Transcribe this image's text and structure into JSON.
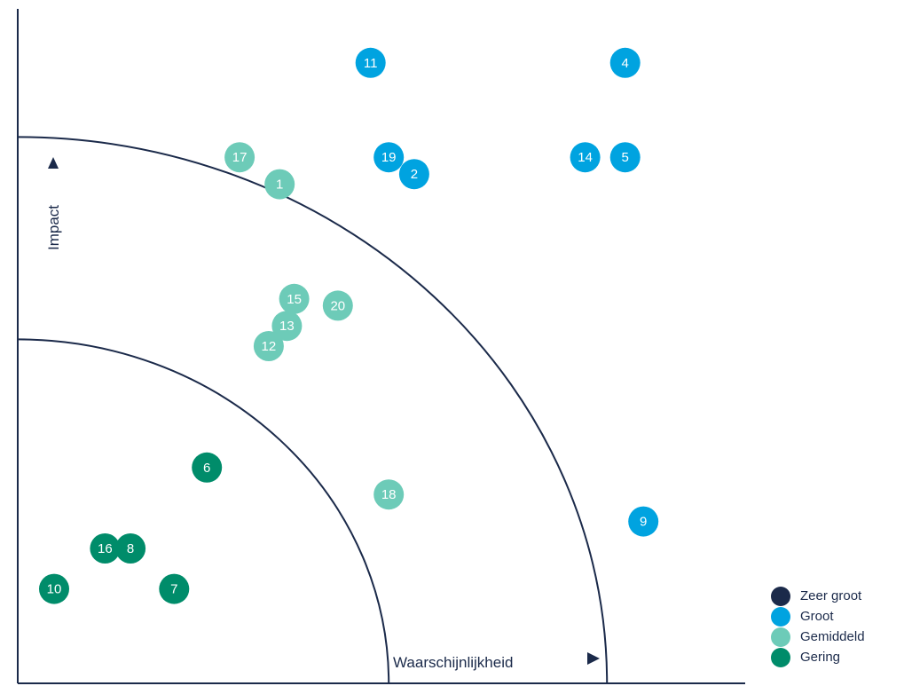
{
  "chart_data": {
    "type": "scatter",
    "title": "",
    "xlabel": "Waarschijnlijkheid",
    "ylabel": "Impact",
    "xlim": [
      0,
      10
    ],
    "ylim": [
      0,
      10
    ],
    "grid": false,
    "legend_position": "bottom-right",
    "zones": [
      {
        "name": "inner",
        "radius": 5.1
      },
      {
        "name": "outer",
        "radius": 8.1
      }
    ],
    "series": [
      {
        "name": "Zeer groot",
        "color": "#1b2a4a",
        "points": []
      },
      {
        "name": "Groot",
        "color": "#00a3e0",
        "points": [
          {
            "label": "11",
            "x": 4.85,
            "y": 9.2
          },
          {
            "label": "4",
            "x": 8.35,
            "y": 9.2
          },
          {
            "label": "19",
            "x": 5.1,
            "y": 7.8
          },
          {
            "label": "2",
            "x": 5.45,
            "y": 7.55
          },
          {
            "label": "14",
            "x": 7.8,
            "y": 7.8
          },
          {
            "label": "5",
            "x": 8.35,
            "y": 7.8
          },
          {
            "label": "9",
            "x": 8.6,
            "y": 2.4
          }
        ]
      },
      {
        "name": "Gemiddeld",
        "color": "#6dcbb8",
        "points": [
          {
            "label": "17",
            "x": 3.05,
            "y": 7.8
          },
          {
            "label": "1",
            "x": 3.6,
            "y": 7.4
          },
          {
            "label": "15",
            "x": 3.8,
            "y": 5.7
          },
          {
            "label": "20",
            "x": 4.4,
            "y": 5.6
          },
          {
            "label": "13",
            "x": 3.7,
            "y": 5.3
          },
          {
            "label": "12",
            "x": 3.45,
            "y": 5.0
          },
          {
            "label": "18",
            "x": 5.1,
            "y": 2.8
          }
        ]
      },
      {
        "name": "Gering",
        "color": "#008c6a",
        "points": [
          {
            "label": "6",
            "x": 2.6,
            "y": 3.2
          },
          {
            "label": "16",
            "x": 1.2,
            "y": 2.0
          },
          {
            "label": "8",
            "x": 1.55,
            "y": 2.0
          },
          {
            "label": "10",
            "x": 0.5,
            "y": 1.4
          },
          {
            "label": "7",
            "x": 2.15,
            "y": 1.4
          }
        ]
      }
    ]
  }
}
